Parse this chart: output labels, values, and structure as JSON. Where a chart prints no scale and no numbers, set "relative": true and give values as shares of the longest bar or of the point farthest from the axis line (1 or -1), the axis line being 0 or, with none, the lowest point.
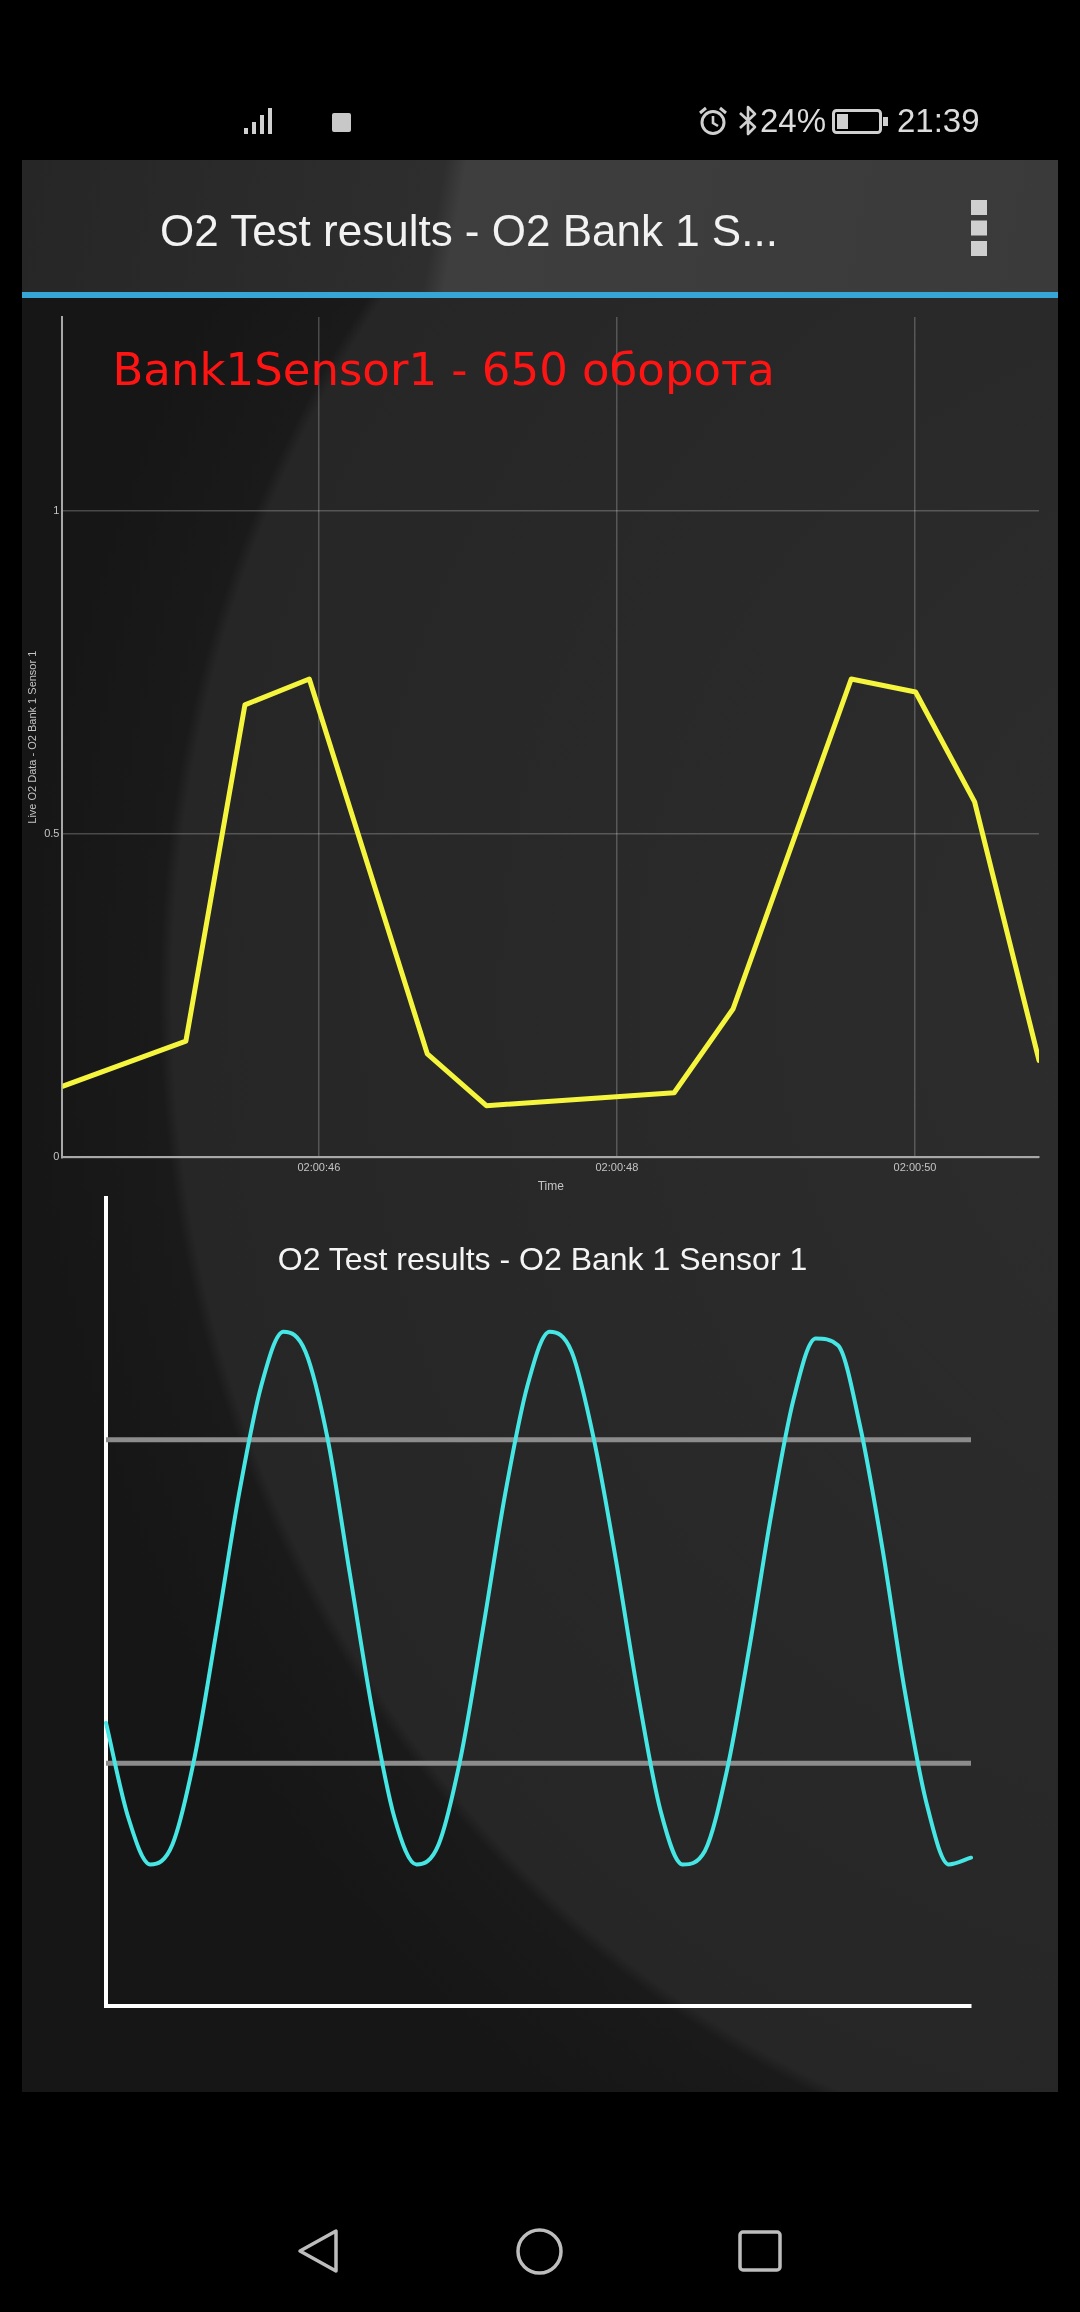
{
  "chart_data": [
    {
      "type": "line",
      "title": "O2 Test results - O2 Bank 1 S...",
      "xlabel": "Time",
      "ylabel": "Live O2 Data - O2 Bank 1 Sensor 1",
      "annotations": [
        "Bank1Sensor1 - 650 оборота",
        "24%",
        "21:39"
      ],
      "x": [
        2.0123,
        2.01253,
        2.01264,
        2.01276,
        2.01298,
        2.01309,
        2.01344,
        2.01355,
        2.01377,
        2.01389,
        2.014,
        2.01412
      ],
      "series": [
        {
          "color": "#f5f53d",
          "values": [
            0.11,
            0.18,
            0.7,
            0.74,
            0.16,
            0.08,
            0.1,
            0.23,
            0.74,
            0.72,
            0.55,
            0.15
          ]
        }
      ],
      "xlim": [
        2.0123,
        2.01412
      ],
      "ylim": [
        0,
        1.3
      ],
      "xticks": [
        {
          "value": 2.0127778,
          "label": "02:00:46"
        },
        {
          "value": 2.0133333,
          "label": "02:00:48"
        },
        {
          "value": 2.0138889,
          "label": "02:00:50"
        }
      ],
      "yticks": [
        0,
        0.5,
        1
      ],
      "grid": true
    },
    {
      "type": "line",
      "title": "O2 Test results - O2 Bank 1 Sensor 1",
      "categories": [
        null,
        null,
        null,
        null,
        null,
        null,
        null,
        null,
        null,
        null,
        null,
        null,
        null,
        null,
        null,
        null,
        null,
        null,
        null,
        null,
        null,
        null,
        null,
        null,
        null,
        null,
        null,
        null,
        null,
        null,
        null,
        null,
        null,
        null,
        null,
        null,
        null,
        null,
        null,
        null
      ],
      "series": [
        {
          "color": "#45e6e3",
          "values": [
            0.42,
            0.28,
            0.21,
            0.24,
            0.37,
            0.56,
            0.76,
            0.92,
            1,
            0.97,
            0.84,
            0.64,
            0.44,
            0.28,
            0.21,
            0.24,
            0.37,
            0.56,
            0.76,
            0.92,
            1,
            0.97,
            0.84,
            0.66,
            0.46,
            0.29,
            0.21,
            0.23,
            0.35,
            0.53,
            0.73,
            0.9,
            0.99,
            0.98,
            0.86,
            0.68,
            0.47,
            0.3,
            0.21,
            0.22
          ]
        }
      ],
      "relative": true,
      "ref_lines": [
        {
          "axis": "y",
          "value": 0.84,
          "color": "#8c8c8c"
        },
        {
          "axis": "y",
          "value": 0.36,
          "color": "#8c8c8c"
        }
      ],
      "tick_labels": false
    }
  ]
}
